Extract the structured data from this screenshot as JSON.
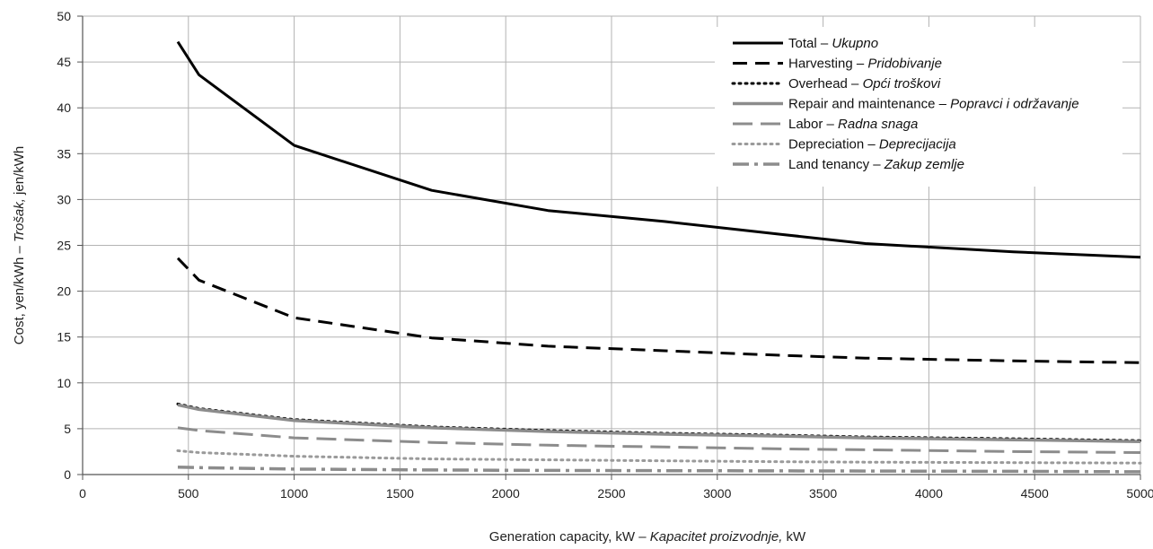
{
  "chart_data": {
    "type": "line",
    "xlabel": {
      "en": "Generation capacity, kW – ",
      "it": "Kapacitet proizvodnje,",
      "tail": " kW"
    },
    "ylabel": {
      "en": "Cost, yen/kWh – ",
      "it": "Trošak,",
      "tail": " jen/kWh"
    },
    "xlim": [
      0,
      5000
    ],
    "ylim": [
      0,
      50
    ],
    "xticks": [
      0,
      500,
      1000,
      1500,
      2000,
      2500,
      3000,
      3500,
      4000,
      4500,
      5000
    ],
    "xtick_labels": [
      "0",
      "500",
      "1000",
      "1500",
      "2000",
      "2500",
      "3000",
      "3500",
      "4000",
      "4500",
      "5000"
    ],
    "yticks": [
      0,
      5,
      10,
      15,
      20,
      25,
      30,
      35,
      40,
      45,
      50
    ],
    "ytick_labels": [
      "0",
      "5",
      "10",
      "15",
      "20",
      "25",
      "30",
      "35",
      "40",
      "45",
      "50"
    ],
    "grid": true,
    "legend_position": "top-right",
    "series": [
      {
        "name": "Total – ",
        "name_it": "Ukupno",
        "style": "solid",
        "color": "#000000",
        "x": [
          450,
          550,
          1000,
          1650,
          2200,
          2750,
          3300,
          3700,
          4400,
          5000
        ],
        "y": [
          47.2,
          43.6,
          35.9,
          31.0,
          28.8,
          27.6,
          26.2,
          25.2,
          24.3,
          23.7
        ]
      },
      {
        "name": "Harvesting – ",
        "name_it": "Pridobivanje",
        "style": "dashed",
        "color": "#000000",
        "x": [
          450,
          550,
          1000,
          1650,
          2200,
          2750,
          3300,
          3700,
          4400,
          5000
        ],
        "y": [
          23.6,
          21.2,
          17.1,
          14.9,
          14.0,
          13.5,
          13.0,
          12.7,
          12.4,
          12.2
        ]
      },
      {
        "name": "Overhead – ",
        "name_it": "Opći troškovi",
        "style": "dotted",
        "color": "#000000",
        "x": [
          450,
          550,
          1000,
          1650,
          2200,
          2750,
          3300,
          3700,
          4400,
          5000
        ],
        "y": [
          7.7,
          7.2,
          6.0,
          5.2,
          4.8,
          4.5,
          4.3,
          4.1,
          3.9,
          3.7
        ]
      },
      {
        "name": "Repair and maintenance – ",
        "name_it": "Popravci i održavanje",
        "style": "solid",
        "color": "#8c8c8c",
        "x": [
          450,
          550,
          1000,
          1650,
          2200,
          2750,
          3300,
          3700,
          4400,
          5000
        ],
        "y": [
          7.6,
          7.1,
          5.9,
          5.1,
          4.7,
          4.4,
          4.2,
          4.0,
          3.8,
          3.6
        ]
      },
      {
        "name": "Labor – ",
        "name_it": "Radna snaga",
        "style": "dashed",
        "color": "#8c8c8c",
        "x": [
          450,
          550,
          1000,
          1650,
          2200,
          2750,
          3300,
          3700,
          4400,
          5000
        ],
        "y": [
          5.1,
          4.8,
          4.0,
          3.5,
          3.2,
          3.0,
          2.8,
          2.7,
          2.5,
          2.4
        ]
      },
      {
        "name": "Depreciation – ",
        "name_it": "Deprecijacija",
        "style": "dotted",
        "color": "#9a9a9a",
        "x": [
          450,
          550,
          1000,
          1650,
          2200,
          2750,
          3300,
          3700,
          4400,
          5000
        ],
        "y": [
          2.6,
          2.4,
          2.0,
          1.7,
          1.6,
          1.5,
          1.4,
          1.35,
          1.3,
          1.25
        ]
      },
      {
        "name": "Land tenancy – ",
        "name_it": "Zakup zemlje",
        "style": "dashdot",
        "color": "#8c8c8c",
        "x": [
          450,
          550,
          1000,
          1650,
          2200,
          2750,
          3300,
          3700,
          4400,
          5000
        ],
        "y": [
          0.8,
          0.75,
          0.6,
          0.5,
          0.45,
          0.42,
          0.4,
          0.38,
          0.35,
          0.3
        ]
      }
    ]
  }
}
